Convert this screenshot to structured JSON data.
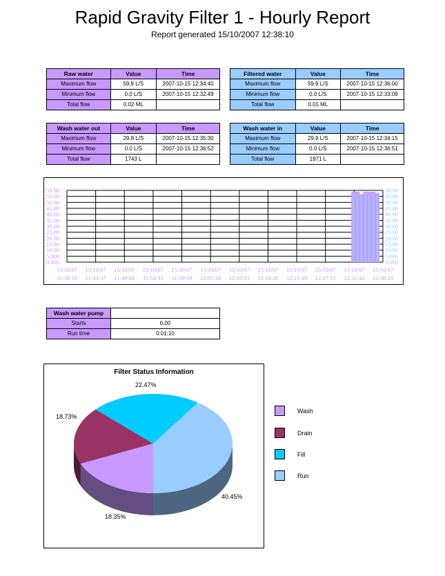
{
  "header": {
    "title": "Rapid Gravity Filter 1 - Hourly Report",
    "subtitle": "Report generated  15/10/2007 12:38:10"
  },
  "colors": {
    "purple": "#c899ff",
    "blue": "#99ccff"
  },
  "tables": {
    "raw_water": {
      "headers": [
        "Raw water",
        "Value",
        "Time"
      ],
      "rows": [
        [
          "Maximum flow",
          "59.9 L/S",
          "2007-10-15 12:34:40"
        ],
        [
          "Minimum flow",
          "0.0 L/S",
          "2007-10-15 12:32:49"
        ],
        [
          "Total flow",
          "0.02 ML",
          ""
        ]
      ]
    },
    "filtered_water": {
      "headers": [
        "Filtered water",
        "Value",
        "Time"
      ],
      "rows": [
        [
          "Maximum flow",
          "59.9 L/S",
          "2007-10-15 12:36:00"
        ],
        [
          "Minimum flow",
          "0.0 L/S",
          "2007-10-15 12:33:09"
        ],
        [
          "Total flow",
          "0.01 ML",
          ""
        ]
      ]
    },
    "wash_water_out": {
      "headers": [
        "Wash water out",
        "Value",
        "Time"
      ],
      "rows": [
        [
          "Maximum flow",
          "29.8 L/S",
          "2007-10-15 12:35:30"
        ],
        [
          "Minimum flow",
          "0.0 L/S",
          "2007-10-15 12:36:52"
        ],
        [
          "Total flow",
          "1743 L",
          ""
        ]
      ]
    },
    "wash_water_in": {
      "headers": [
        "Wash water in",
        "Value",
        "Time"
      ],
      "rows": [
        [
          "Maximum flow",
          "29.9 L/S",
          "2007-10-15 12:34:15"
        ],
        [
          "Minimum flow",
          "0.0 L/S",
          "2007-10-15 12:36:51"
        ],
        [
          "Total flow",
          "1971 L",
          ""
        ]
      ]
    },
    "wash_water_pump": {
      "headers": [
        "Wash water pump",
        ""
      ],
      "rows": [
        [
          "Starts",
          "6.00"
        ],
        [
          "Run time",
          "0:01:10"
        ]
      ]
    }
  },
  "chart_data": [
    {
      "type": "line",
      "y_ticks": [
        "59.90",
        "55.00",
        "50.00",
        "45.00",
        "40.00",
        "35.00",
        "30.00",
        "25.00",
        "20.00",
        "15.00",
        "10.00",
        "5.000",
        "0.000"
      ],
      "ylim": [
        0,
        59.9
      ],
      "x_tick_labels": [
        [
          "15/10/07",
          "11:38:10"
        ],
        [
          "15/10/07",
          "11:43:37"
        ],
        [
          "15/10/07",
          "11:49:04"
        ],
        [
          "15/10/07",
          "11:54:31"
        ],
        [
          "15/10/07",
          "11:59:59"
        ],
        [
          "15/10/07",
          "12:05:26"
        ],
        [
          "15/10/07",
          "12:10:53"
        ],
        [
          "15/10/07",
          "12:16:20"
        ],
        [
          "15/10/07",
          "12:21:48"
        ],
        [
          "15/10/07",
          "12:27:15"
        ],
        [
          "15/10/07",
          "12:32:42"
        ],
        [
          "15/10/07",
          "12:38:10"
        ]
      ],
      "pulses": [
        {
          "start": "12:32:20",
          "end": "12:32:50",
          "value": 58
        },
        {
          "start": "12:33:05",
          "end": "12:33:35",
          "value": 58
        },
        {
          "start": "12:33:50",
          "end": "12:34:20",
          "value": 56
        },
        {
          "start": "12:34:35",
          "end": "12:35:05",
          "value": 58
        },
        {
          "start": "12:35:20",
          "end": "12:35:50",
          "value": 58
        },
        {
          "start": "12:36:05",
          "end": "12:36:35",
          "value": 58
        },
        {
          "start": "12:36:50",
          "end": "12:37:20",
          "value": 57
        }
      ],
      "grid": true
    },
    {
      "type": "pie",
      "title": "Filter Status Information",
      "slices": [
        {
          "label": "Wash",
          "value": 18.35,
          "text": "18.35%",
          "color": "#c899ff"
        },
        {
          "label": "Drain",
          "value": 18.73,
          "text": "18.73%",
          "color": "#993366"
        },
        {
          "label": "Fill",
          "value": 22.47,
          "text": "22.47%",
          "color": "#00ccff"
        },
        {
          "label": "Run",
          "value": 40.45,
          "text": "40.45%",
          "color": "#99ccff"
        }
      ],
      "legend_position": "right"
    }
  ]
}
